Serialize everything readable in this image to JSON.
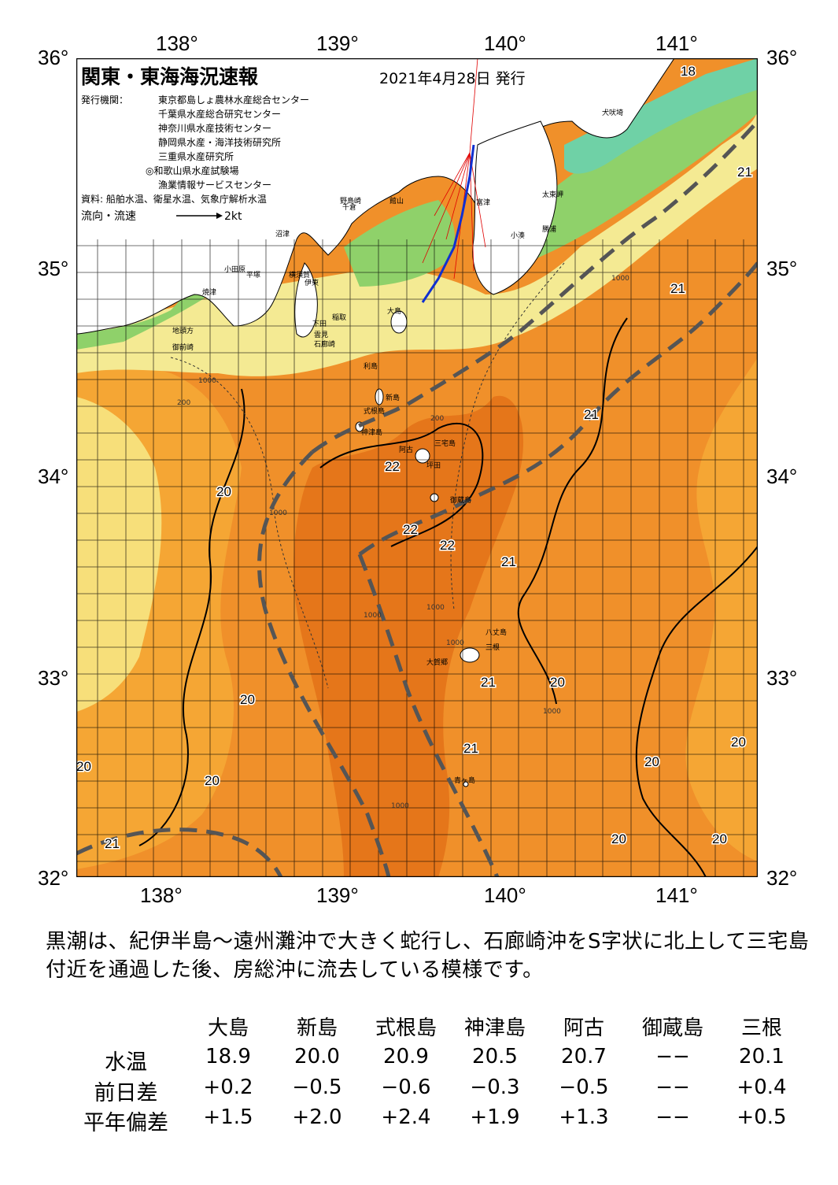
{
  "map": {
    "title": "関東・東海海況速報",
    "issue_date": "2021年4月28日 発行",
    "issuer_label": "発行機関：",
    "issuers": [
      "東京都島しょ農林水産総合センター",
      "千葉県水産総合研究センター",
      "神奈川県水産技術センター",
      "静岡県水産・海洋技術研究所",
      "三重県水産研究所",
      "◎和歌山県水産試験場",
      "漁業情報サービスセンター"
    ],
    "source": "資料: 船舶水温、衛星水温、気象庁解析水温",
    "flow_label": "流向・流速",
    "flow_scale": "2kt",
    "lon_labels": [
      "138°",
      "139°",
      "140°",
      "141°"
    ],
    "lat_labels": [
      "36°",
      "35°",
      "34°",
      "33°",
      "32°"
    ],
    "colors": {
      "deep_orange": "#e5761a",
      "orange": "#f0902a",
      "light_orange": "#f5a634",
      "yellow": "#f7df7a",
      "pale_yellow": "#f4ea93",
      "green": "#8fd16a",
      "cyan": "#6fd1a6",
      "land": "#ffffff",
      "kuroshio_axis": "#555555"
    },
    "isotherm_labels": [
      {
        "text": "18"
      },
      {
        "text": "21"
      },
      {
        "text": "21"
      },
      {
        "text": "21"
      },
      {
        "text": "20"
      },
      {
        "text": "22"
      },
      {
        "text": "22"
      },
      {
        "text": "22"
      },
      {
        "text": "21"
      },
      {
        "text": "20"
      },
      {
        "text": "21"
      },
      {
        "text": "20"
      },
      {
        "text": "21"
      },
      {
        "text": "20"
      },
      {
        "text": "20"
      },
      {
        "text": "20"
      },
      {
        "text": "20"
      },
      {
        "text": "20"
      },
      {
        "text": "20"
      },
      {
        "text": "21"
      }
    ],
    "place_names": [
      "犬吠埼",
      "太東岬",
      "勝浦",
      "小湊",
      "富津",
      "館山",
      "千倉",
      "野島崎",
      "横須賀",
      "平塚",
      "小田原",
      "沼津",
      "伊東",
      "大島",
      "稲取",
      "下田",
      "雲見",
      "石廊崎",
      "焼津",
      "地頭方",
      "御前崎",
      "利島",
      "新島",
      "式根島",
      "神津島",
      "三宅島",
      "阿古",
      "坪田",
      "御蔵島",
      "八丈島",
      "三根",
      "大賀郷",
      "青ヶ島"
    ],
    "depth_labels": [
      "200",
      "1000",
      "1000",
      "200",
      "1000",
      "1000",
      "1000",
      "1000",
      "1000",
      "1000"
    ]
  },
  "summary_text": "黒潮は、紀伊半島～遠州灘沖で大きく蛇行し、石廊崎沖をS字状に北上して三宅島付近を通過した後、房総沖に流去している模様です。",
  "table": {
    "columns": [
      "大島",
      "新島",
      "式根島",
      "神津島",
      "阿古",
      "御蔵島",
      "三根"
    ],
    "rows": [
      {
        "label": "水温",
        "values": [
          "18.9",
          "20.0",
          "20.9",
          "20.5",
          "20.7",
          "−−",
          "20.1"
        ]
      },
      {
        "label": "前日差",
        "values": [
          "+0.2",
          "−0.5",
          "−0.6",
          "−0.3",
          "−0.5",
          "−−",
          "+0.4"
        ]
      },
      {
        "label": "平年偏差",
        "values": [
          "+1.5",
          "+2.0",
          "+2.4",
          "+1.9",
          "+1.3",
          "−−",
          "+0.5"
        ]
      }
    ]
  }
}
